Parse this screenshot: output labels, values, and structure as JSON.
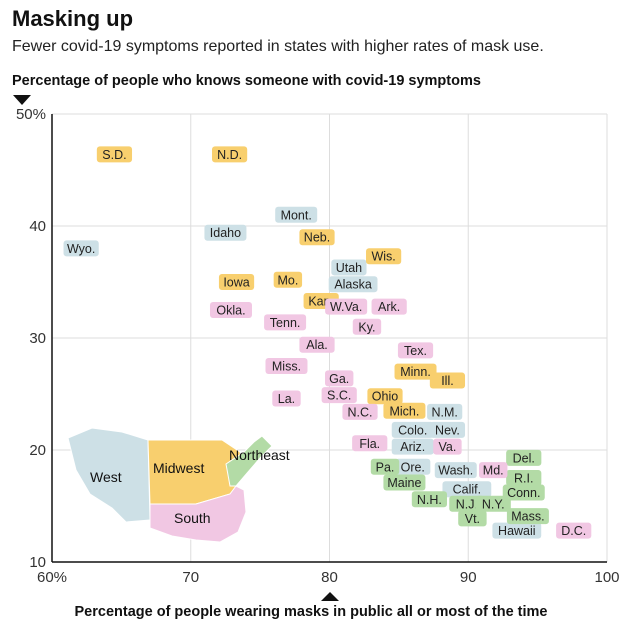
{
  "header": {
    "title": "Masking up",
    "subtitle": "Fewer covid-19 symptoms reported in states with higher rates of mask use."
  },
  "colors": {
    "West": "#cde0e6",
    "Midwest": "#f8cf6e",
    "Northeast": "#b3dba6",
    "South": "#f1c7e3",
    "grid": "#dddddd",
    "axis": "#111111"
  },
  "chart_data": {
    "type": "scatter",
    "title": "Masking up",
    "subtitle": "Fewer covid-19 symptoms reported in states with higher rates of mask use.",
    "xlabel": "Percentage of people wearing masks in public all or most of the time",
    "ylabel": "Percentage of people who knows someone with covid-19 symptoms",
    "xlim": [
      60,
      100
    ],
    "ylim": [
      10,
      50
    ],
    "xticks": [
      {
        "v": 60,
        "label": "60%"
      },
      {
        "v": 70,
        "label": "70"
      },
      {
        "v": 80,
        "label": "80"
      },
      {
        "v": 90,
        "label": "90"
      },
      {
        "v": 100,
        "label": "100"
      }
    ],
    "yticks": [
      {
        "v": 10,
        "label": "10"
      },
      {
        "v": 20,
        "label": "20"
      },
      {
        "v": 30,
        "label": "30"
      },
      {
        "v": 40,
        "label": "40"
      },
      {
        "v": 50,
        "label": "50%"
      }
    ],
    "grid": true,
    "series": [
      {
        "name": "West",
        "points": [
          {
            "label": "Wyo.",
            "x": 62.1,
            "y": 38.0
          },
          {
            "label": "Idaho",
            "x": 72.5,
            "y": 39.4
          },
          {
            "label": "Mont.",
            "x": 77.6,
            "y": 41.0
          },
          {
            "label": "Utah",
            "x": 81.4,
            "y": 36.3
          },
          {
            "label": "Alaska",
            "x": 81.7,
            "y": 34.8
          },
          {
            "label": "Colo.",
            "x": 86.0,
            "y": 21.8
          },
          {
            "label": "Ariz.",
            "x": 86.0,
            "y": 20.3
          },
          {
            "label": "N.M.",
            "x": 88.3,
            "y": 23.4
          },
          {
            "label": "Nev.",
            "x": 88.5,
            "y": 21.8
          },
          {
            "label": "Ore.",
            "x": 86.0,
            "y": 18.5
          },
          {
            "label": "Wash.",
            "x": 89.1,
            "y": 18.2
          },
          {
            "label": "Calif.",
            "x": 89.9,
            "y": 16.5
          },
          {
            "label": "Hawaii",
            "x": 93.5,
            "y": 12.8
          }
        ]
      },
      {
        "name": "Midwest",
        "points": [
          {
            "label": "S.D.",
            "x": 64.5,
            "y": 46.4
          },
          {
            "label": "N.D.",
            "x": 72.8,
            "y": 46.4
          },
          {
            "label": "Iowa",
            "x": 73.3,
            "y": 35.0
          },
          {
            "label": "Mo.",
            "x": 77.0,
            "y": 35.2
          },
          {
            "label": "Neb.",
            "x": 79.1,
            "y": 39.0
          },
          {
            "label": "Kan.",
            "x": 79.4,
            "y": 33.3
          },
          {
            "label": "Wis.",
            "x": 83.9,
            "y": 37.3
          },
          {
            "label": "Minn.",
            "x": 86.2,
            "y": 27.0
          },
          {
            "label": "Ohio",
            "x": 84.0,
            "y": 24.8
          },
          {
            "label": "Mich.",
            "x": 85.4,
            "y": 23.5
          },
          {
            "label": "Ill.",
            "x": 88.5,
            "y": 26.2
          }
        ]
      },
      {
        "name": "Northeast",
        "points": [
          {
            "label": "Pa.",
            "x": 84.0,
            "y": 18.5
          },
          {
            "label": "Maine",
            "x": 85.4,
            "y": 17.1
          },
          {
            "label": "N.H.",
            "x": 87.2,
            "y": 15.6
          },
          {
            "label": "Del.",
            "x": 94.0,
            "y": 19.3
          },
          {
            "label": "R.I.",
            "x": 94.0,
            "y": 17.5
          },
          {
            "label": "Conn.",
            "x": 94.0,
            "y": 16.2
          },
          {
            "label": "N.J.",
            "x": 89.9,
            "y": 15.2
          },
          {
            "label": "N.Y.",
            "x": 91.8,
            "y": 15.2
          },
          {
            "label": "Vt.",
            "x": 90.3,
            "y": 13.9
          },
          {
            "label": "Mass.",
            "x": 94.3,
            "y": 14.1
          }
        ]
      },
      {
        "name": "South",
        "points": [
          {
            "label": "Okla.",
            "x": 72.9,
            "y": 32.5
          },
          {
            "label": "Tenn.",
            "x": 76.8,
            "y": 31.4
          },
          {
            "label": "Ala.",
            "x": 79.1,
            "y": 29.4
          },
          {
            "label": "Miss.",
            "x": 76.9,
            "y": 27.5
          },
          {
            "label": "La.",
            "x": 76.9,
            "y": 24.6
          },
          {
            "label": "W.Va.",
            "x": 81.2,
            "y": 32.8
          },
          {
            "label": "Ark.",
            "x": 84.3,
            "y": 32.8
          },
          {
            "label": "Ky.",
            "x": 82.7,
            "y": 31.0
          },
          {
            "label": "Tex.",
            "x": 86.2,
            "y": 28.9
          },
          {
            "label": "Ga.",
            "x": 80.7,
            "y": 26.4
          },
          {
            "label": "S.C.",
            "x": 80.7,
            "y": 24.9
          },
          {
            "label": "N.C.",
            "x": 82.2,
            "y": 23.4
          },
          {
            "label": "Fla.",
            "x": 82.9,
            "y": 20.6
          },
          {
            "label": "Va.",
            "x": 88.5,
            "y": 20.3
          },
          {
            "label": "Md.",
            "x": 91.8,
            "y": 18.2
          },
          {
            "label": "D.C.",
            "x": 97.6,
            "y": 12.8
          }
        ]
      }
    ]
  },
  "map": {
    "regions": [
      "West",
      "Midwest",
      "Northeast",
      "South"
    ]
  }
}
